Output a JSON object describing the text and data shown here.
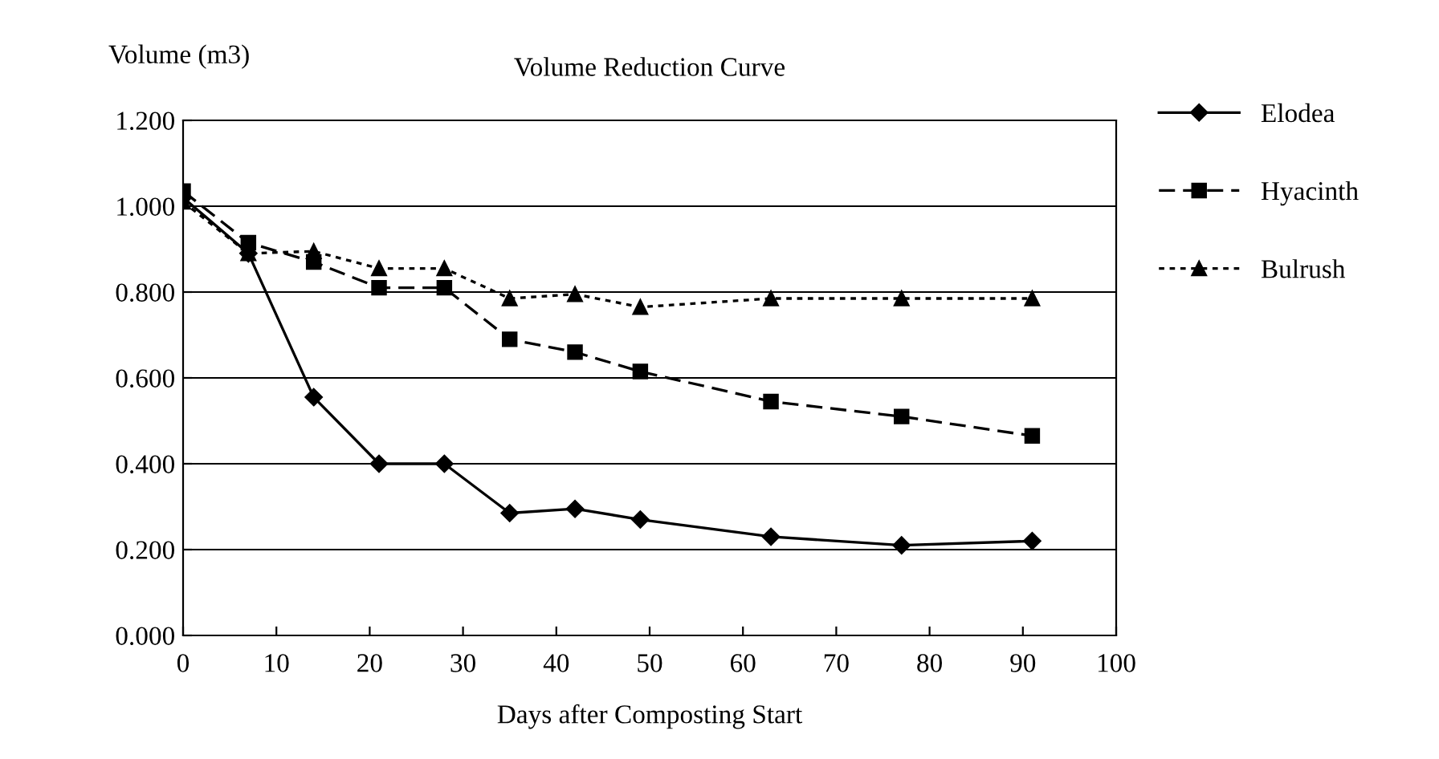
{
  "chart_data": {
    "type": "line",
    "title": "Volume Reduction Curve",
    "xlabel": "Days after Composting Start",
    "ylabel": "Volume (m3)",
    "x": [
      0,
      7,
      14,
      21,
      28,
      35,
      42,
      49,
      63,
      77,
      91
    ],
    "series": [
      {
        "name": "Elodea",
        "color": "#000000",
        "marker": "diamond",
        "line_style": "solid",
        "values": [
          1.02,
          0.89,
          0.555,
          0.4,
          0.4,
          0.285,
          0.295,
          0.27,
          0.23,
          0.21,
          0.22
        ]
      },
      {
        "name": "Hyacinth",
        "color": "#000000",
        "marker": "square",
        "line_style": "dashed",
        "values": [
          1.035,
          0.915,
          0.87,
          0.81,
          0.81,
          0.69,
          0.66,
          0.615,
          0.545,
          0.51,
          0.465
        ]
      },
      {
        "name": "Bulrush",
        "color": "#000000",
        "marker": "triangle",
        "line_style": "dotted",
        "values": [
          1.01,
          0.89,
          0.895,
          0.855,
          0.855,
          0.785,
          0.795,
          0.765,
          0.785,
          0.785,
          0.785
        ]
      }
    ],
    "xlim": [
      0,
      100
    ],
    "xticks": [
      0,
      10,
      20,
      30,
      40,
      50,
      60,
      70,
      80,
      90,
      100
    ],
    "ylim": [
      0,
      1.2
    ],
    "yticks": [
      {
        "value": 0,
        "label": "0.000"
      },
      {
        "value": 0.2,
        "label": "0.200"
      },
      {
        "value": 0.4,
        "label": "0.400"
      },
      {
        "value": 0.6,
        "label": "0.600"
      },
      {
        "value": 0.8,
        "label": "0.800"
      },
      {
        "value": 1.0,
        "label": "1.000"
      },
      {
        "value": 1.2,
        "label": "1.200"
      }
    ],
    "grid": "y",
    "legend": "right"
  }
}
